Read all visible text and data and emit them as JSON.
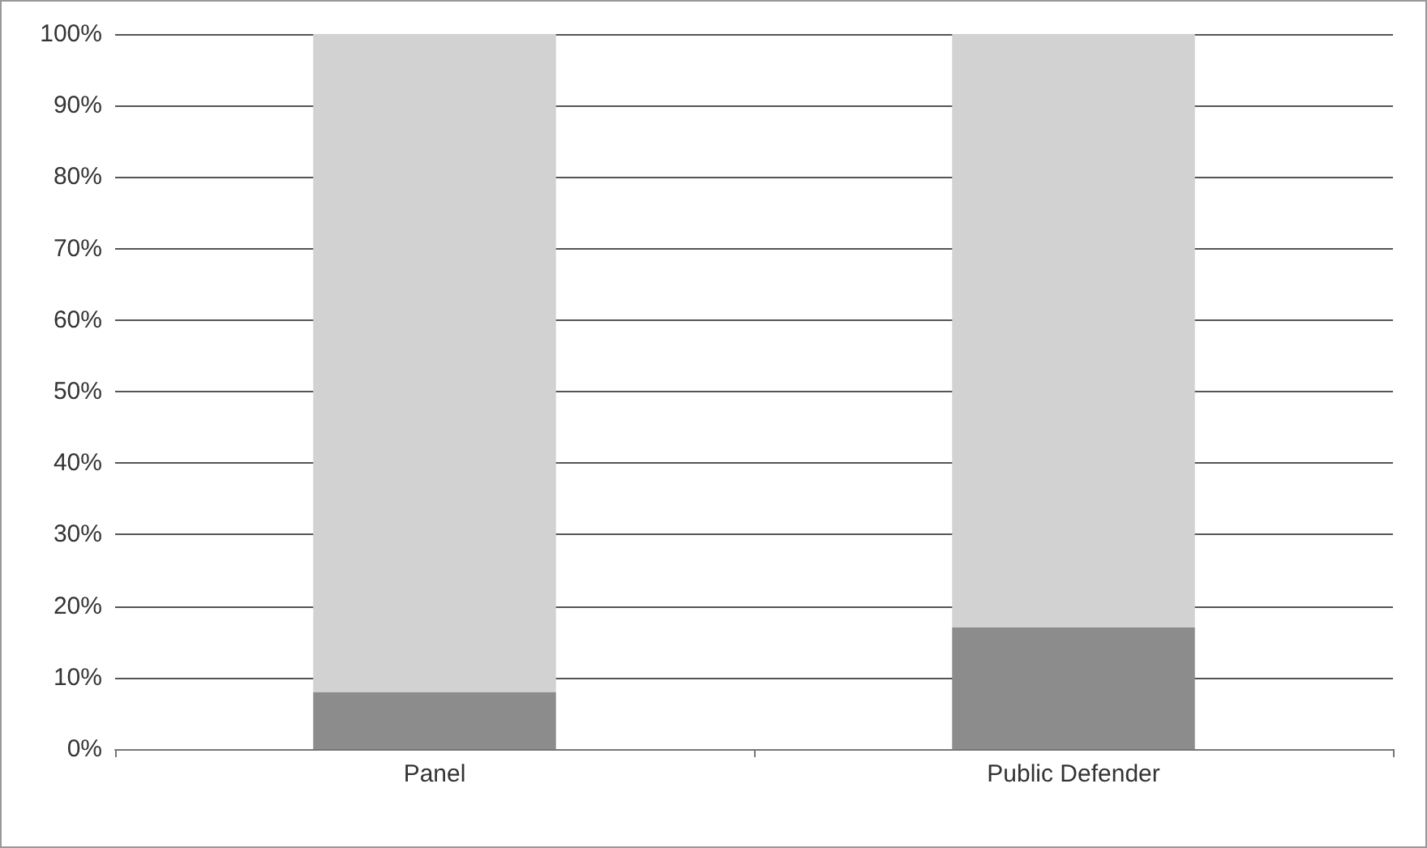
{
  "chart_data": {
    "type": "bar",
    "stacked": true,
    "categories": [
      "Panel",
      "Public Defender"
    ],
    "series": [
      {
        "color": "#8c8c8c",
        "values": [
          8,
          17
        ]
      },
      {
        "color": "#d2d2d2",
        "values": [
          92,
          83
        ]
      }
    ],
    "ylim": [
      0,
      100
    ],
    "yticks": [
      {
        "value": 0,
        "label": "0%"
      },
      {
        "value": 10,
        "label": "10%"
      },
      {
        "value": 20,
        "label": "20%"
      },
      {
        "value": 30,
        "label": "30%"
      },
      {
        "value": 40,
        "label": "40%"
      },
      {
        "value": 50,
        "label": "50%"
      },
      {
        "value": 60,
        "label": "60%"
      },
      {
        "value": 70,
        "label": "70%"
      },
      {
        "value": 80,
        "label": "80%"
      },
      {
        "value": 90,
        "label": "90%"
      },
      {
        "value": 100,
        "label": "100%"
      }
    ],
    "grid": "y"
  }
}
